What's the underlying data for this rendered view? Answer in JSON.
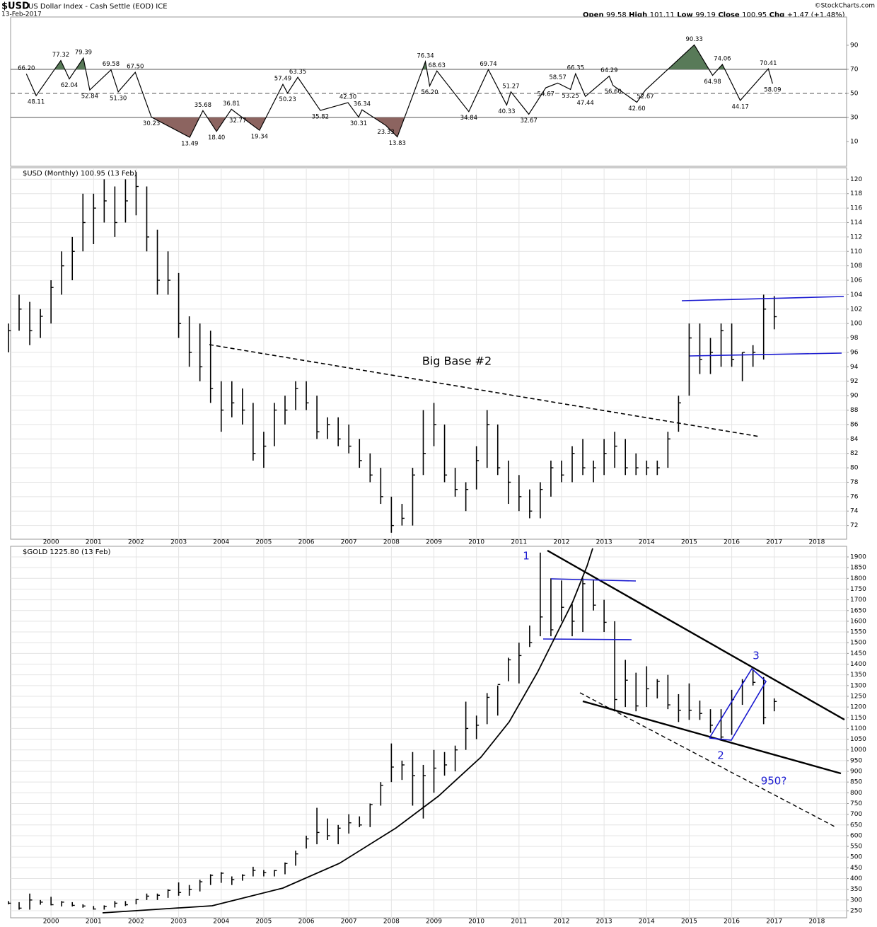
{
  "header": {
    "symbol": "$USD",
    "name": "US Dollar Index - Cash Settle (EOD) ICE",
    "date": "13-Feb-2017",
    "quote": [
      {
        "label": "Open",
        "value": "99.58"
      },
      {
        "label": "High",
        "value": "101.11"
      },
      {
        "label": "Low",
        "value": "99.19"
      },
      {
        "label": "Close",
        "value": "100.95"
      },
      {
        "label": "Chg",
        "value": "+1.47 (+1.48%)"
      }
    ],
    "source": "©StockCharts.com"
  },
  "annotations": {
    "big_base": "Big Base #2",
    "wave_1": "1",
    "wave_2": "2",
    "wave_3": "3",
    "target": "950?"
  },
  "chart_data": [
    {
      "type": "line",
      "color": "#000000",
      "fill_above": "#587a58",
      "fill_below": "#8c6460",
      "xlim": [
        1999.05,
        2018.7
      ],
      "ylim": [
        -10.6,
        113.5
      ],
      "yticks": [
        10,
        30,
        50,
        70,
        90
      ],
      "overbought": 70,
      "midline": 50,
      "oversold": 30,
      "x": [
        1999.42,
        1999.65,
        2000.23,
        2000.43,
        2000.76,
        2000.91,
        2001.41,
        2001.58,
        2001.98,
        2002.36,
        2003.26,
        2003.57,
        2003.89,
        2004.24,
        2004.39,
        2004.9,
        2005.45,
        2005.56,
        2005.8,
        2006.33,
        2006.98,
        2007.23,
        2007.31,
        2007.87,
        2008.14,
        2008.8,
        2008.9,
        2009.07,
        2009.82,
        2010.28,
        2010.71,
        2010.81,
        2011.23,
        2011.63,
        2011.91,
        2012.21,
        2012.33,
        2012.56,
        2013.12,
        2013.21,
        2013.77,
        2013.97,
        2015.12,
        2015.55,
        2015.78,
        2016.2,
        2016.86,
        2016.96
      ],
      "values": [
        66.2,
        48.11,
        77.32,
        62.04,
        79.39,
        52.84,
        69.58,
        51.3,
        67.5,
        30.23,
        13.49,
        35.68,
        18.4,
        36.81,
        32.77,
        19.34,
        57.49,
        50.23,
        63.35,
        35.82,
        42.3,
        30.31,
        36.34,
        23.33,
        13.83,
        76.34,
        56.2,
        68.63,
        34.84,
        69.74,
        40.33,
        51.27,
        32.67,
        54.67,
        58.57,
        53.25,
        66.35,
        47.44,
        64.29,
        56.6,
        42.6,
        52.67,
        90.33,
        64.98,
        74.06,
        44.17,
        70.41,
        58.09
      ],
      "value_labels": [
        "66.20",
        "48.11",
        "77.32",
        "62.04",
        "79.39",
        "52.84",
        "69.58",
        "51.30",
        "67.50",
        "30.23",
        "13.49",
        "35.68",
        "18.40",
        "36.81",
        "32.77",
        "19.34",
        "57.49",
        "50.23",
        "63.35",
        "35.82",
        "42.30",
        "30.31",
        "36.34",
        "23.33",
        "13.83",
        "76.34",
        "56.20",
        "68.63",
        "34.84",
        "69.74",
        "40.33",
        "51.27",
        "32.67",
        "54.67",
        "58.57",
        "53.25",
        "66.35",
        "47.44",
        "64.29",
        "56.60",
        "42.60",
        "52.67",
        "90.33",
        "64.98",
        "74.06",
        "44.17",
        "70.41",
        "58.09"
      ]
    },
    {
      "type": "ohlc",
      "title": "$USD (Monthly) 100.95 (13 Feb)",
      "color": "#000000",
      "grid": true,
      "xlim": [
        1999.05,
        2018.7
      ],
      "xticks": [
        2000,
        2001,
        2002,
        2003,
        2004,
        2005,
        2006,
        2007,
        2008,
        2009,
        2010,
        2011,
        2012,
        2013,
        2014,
        2015,
        2016,
        2017,
        2018
      ],
      "ylim": [
        70.1,
        121.6
      ],
      "yticks": [
        72,
        74,
        76,
        78,
        80,
        82,
        84,
        86,
        88,
        90,
        92,
        94,
        96,
        98,
        100,
        102,
        104,
        106,
        108,
        110,
        112,
        114,
        116,
        118,
        120
      ],
      "x": [
        1999,
        1999.25,
        1999.5,
        1999.75,
        2000,
        2000.25,
        2000.5,
        2000.75,
        2001,
        2001.25,
        2001.5,
        2001.75,
        2002,
        2002.25,
        2002.5,
        2002.75,
        2003,
        2003.25,
        2003.5,
        2003.75,
        2004,
        2004.25,
        2004.5,
        2004.75,
        2005,
        2005.25,
        2005.5,
        2005.75,
        2006,
        2006.25,
        2006.5,
        2006.75,
        2007,
        2007.25,
        2007.5,
        2007.75,
        2008,
        2008.25,
        2008.5,
        2008.75,
        2009,
        2009.25,
        2009.5,
        2009.75,
        2010,
        2010.25,
        2010.5,
        2010.75,
        2011,
        2011.25,
        2011.5,
        2011.75,
        2012,
        2012.25,
        2012.5,
        2012.75,
        2013,
        2013.25,
        2013.5,
        2013.75,
        2014,
        2014.25,
        2014.5,
        2014.75,
        2015,
        2015.25,
        2015.5,
        2015.75,
        2016,
        2016.25,
        2016.5,
        2016.75,
        2017
      ],
      "high": [
        100,
        104,
        103,
        102,
        106,
        110,
        112,
        118,
        118,
        120,
        119,
        120,
        121,
        119,
        113,
        110,
        107,
        101,
        100,
        99,
        92,
        92,
        91,
        89,
        85,
        89,
        90,
        92,
        92,
        90,
        87,
        87,
        86,
        84,
        82,
        80,
        76,
        75,
        80,
        88,
        89,
        86,
        80,
        78,
        83,
        88,
        86,
        81,
        79,
        77,
        78,
        81,
        81,
        83,
        84,
        81,
        84,
        85,
        84,
        82,
        81,
        81,
        85,
        90,
        100,
        100,
        98,
        100,
        100,
        96,
        97,
        104,
        103.8
      ],
      "low": [
        96,
        99,
        97,
        98,
        100,
        104,
        106,
        110,
        111,
        114,
        112,
        114,
        115,
        110,
        104,
        104,
        98,
        94,
        92,
        89,
        85,
        87,
        86,
        81,
        80,
        83,
        86,
        88,
        88,
        84,
        84,
        83,
        82,
        80,
        78,
        75,
        71,
        72,
        72,
        79,
        83,
        78,
        76,
        74,
        77,
        80,
        79,
        75,
        74,
        73,
        73,
        76,
        78,
        78,
        79,
        78,
        79,
        80,
        79,
        79,
        79,
        79,
        80,
        85,
        90,
        93,
        93,
        94,
        94,
        92,
        94,
        95,
        99.2
      ],
      "close": [
        99,
        102,
        99,
        101,
        105,
        108,
        110,
        114,
        116,
        117,
        114,
        117,
        119,
        112,
        106,
        106,
        100,
        96,
        94,
        91,
        88,
        89,
        88,
        82,
        83,
        88,
        88,
        91,
        89,
        85,
        86,
        84,
        83,
        81,
        79,
        76,
        72,
        73,
        79,
        82,
        86,
        79,
        77,
        77,
        81,
        86,
        80,
        78,
        76,
        74,
        77,
        80,
        79,
        82,
        80,
        80,
        82,
        83,
        80,
        80,
        80,
        80,
        84,
        89,
        98,
        95,
        96,
        99,
        95,
        96,
        96,
        102,
        100.95
      ]
    },
    {
      "type": "ohlc",
      "title": "$GOLD 1225.80 (13 Feb)",
      "color": "#000000",
      "grid": true,
      "xlim": [
        1999.05,
        2018.7
      ],
      "xticks": [
        2000,
        2001,
        2002,
        2003,
        2004,
        2005,
        2006,
        2007,
        2008,
        2009,
        2010,
        2011,
        2012,
        2013,
        2014,
        2015,
        2016,
        2017,
        2018
      ],
      "ylim": [
        217,
        1949.5
      ],
      "yticks": [
        250,
        300,
        350,
        400,
        450,
        500,
        550,
        600,
        650,
        700,
        750,
        800,
        850,
        900,
        950,
        1000,
        1050,
        1100,
        1150,
        1200,
        1250,
        1300,
        1350,
        1400,
        1450,
        1500,
        1550,
        1600,
        1650,
        1700,
        1750,
        1800,
        1850,
        1900
      ],
      "x": [
        1999,
        1999.25,
        1999.5,
        1999.75,
        2000,
        2000.25,
        2000.5,
        2000.75,
        2001,
        2001.25,
        2001.5,
        2001.75,
        2002,
        2002.25,
        2002.5,
        2002.75,
        2003,
        2003.25,
        2003.5,
        2003.75,
        2004,
        2004.25,
        2004.5,
        2004.75,
        2005,
        2005.25,
        2005.5,
        2005.75,
        2006,
        2006.25,
        2006.5,
        2006.75,
        2007,
        2007.25,
        2007.5,
        2007.75,
        2008,
        2008.25,
        2008.5,
        2008.75,
        2009,
        2009.25,
        2009.5,
        2009.75,
        2010,
        2010.25,
        2010.5,
        2010.75,
        2011,
        2011.25,
        2011.5,
        2011.75,
        2012,
        2012.25,
        2012.5,
        2012.75,
        2013,
        2013.25,
        2013.5,
        2013.75,
        2014,
        2014.25,
        2014.5,
        2014.75,
        2015,
        2015.25,
        2015.5,
        2015.75,
        2016,
        2016.25,
        2016.5,
        2016.75,
        2017
      ],
      "high": [
        295,
        290,
        330,
        300,
        315,
        295,
        290,
        280,
        272,
        275,
        295,
        295,
        305,
        330,
        330,
        350,
        382,
        370,
        395,
        420,
        430,
        410,
        420,
        455,
        440,
        440,
        475,
        530,
        600,
        730,
        680,
        650,
        700,
        690,
        750,
        850,
        1030,
        950,
        990,
        930,
        1000,
        990,
        1020,
        1225,
        1160,
        1265,
        1300,
        1430,
        1500,
        1580,
        1920,
        1800,
        1790,
        1680,
        1800,
        1795,
        1700,
        1600,
        1420,
        1360,
        1390,
        1330,
        1350,
        1260,
        1310,
        1230,
        1190,
        1190,
        1280,
        1330,
        1375,
        1340,
        1240
      ],
      "low": [
        280,
        255,
        255,
        278,
        275,
        270,
        270,
        264,
        255,
        255,
        265,
        272,
        280,
        300,
        300,
        310,
        320,
        320,
        340,
        370,
        380,
        370,
        390,
        410,
        410,
        410,
        420,
        460,
        540,
        560,
        580,
        560,
        610,
        640,
        640,
        740,
        850,
        860,
        740,
        680,
        800,
        880,
        900,
        1000,
        1050,
        1120,
        1160,
        1320,
        1310,
        1480,
        1530,
        1530,
        1600,
        1530,
        1550,
        1650,
        1550,
        1180,
        1200,
        1180,
        1200,
        1240,
        1190,
        1130,
        1140,
        1140,
        1080,
        1050,
        1070,
        1210,
        1300,
        1120,
        1180
      ],
      "close": [
        285,
        262,
        300,
        290,
        278,
        290,
        275,
        272,
        258,
        270,
        285,
        278,
        302,
        318,
        322,
        345,
        335,
        350,
        385,
        415,
        425,
        395,
        415,
        438,
        428,
        437,
        470,
        515,
        585,
        615,
        600,
        635,
        660,
        650,
        745,
        835,
        920,
        930,
        880,
        880,
        915,
        930,
        1000,
        1100,
        1115,
        1245,
        1305,
        1420,
        1440,
        1500,
        1620,
        1560,
        1665,
        1600,
        1775,
        1675,
        1595,
        1235,
        1325,
        1205,
        1285,
        1320,
        1210,
        1185,
        1185,
        1170,
        1115,
        1060,
        1235,
        1320,
        1315,
        1150,
        1225.8
      ]
    }
  ]
}
